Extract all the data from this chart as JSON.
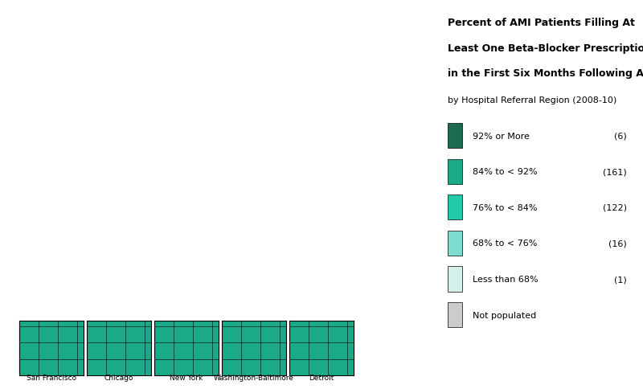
{
  "title_line1": "Percent of AMI Patients Filling At",
  "title_line2": "Least One Beta-Blocker Prescription",
  "title_line3": "in the First Six Months Following AMI",
  "subtitle": "by Hospital Referral Region (2008-10)",
  "legend_items": [
    {
      "label": "92% or More",
      "count": "(6)",
      "color": "#1a6b52"
    },
    {
      "label": "84% to < 92%",
      "count": "(161)",
      "color": "#1aaa8a"
    },
    {
      "label": "76% to < 84%",
      "count": "(122)",
      "color": "#22ccaa"
    },
    {
      "label": "68% to < 76%",
      "count": "(16)",
      "color": "#7dddd0"
    },
    {
      "label": "Less than 68%",
      "count": "(1)",
      "color": "#d4f0eb"
    },
    {
      "label": "Not populated",
      "count": "",
      "color": "#cccccc"
    }
  ],
  "city_labels": [
    "San Francisco",
    "Chicago",
    "New York",
    "Washington-Baltimore",
    "Detroit"
  ],
  "background_color": "#ffffff",
  "border_color": "#000000",
  "map_bg": "#ffffff",
  "title_fontsize": 9,
  "subtitle_fontsize": 8,
  "legend_fontsize": 8
}
